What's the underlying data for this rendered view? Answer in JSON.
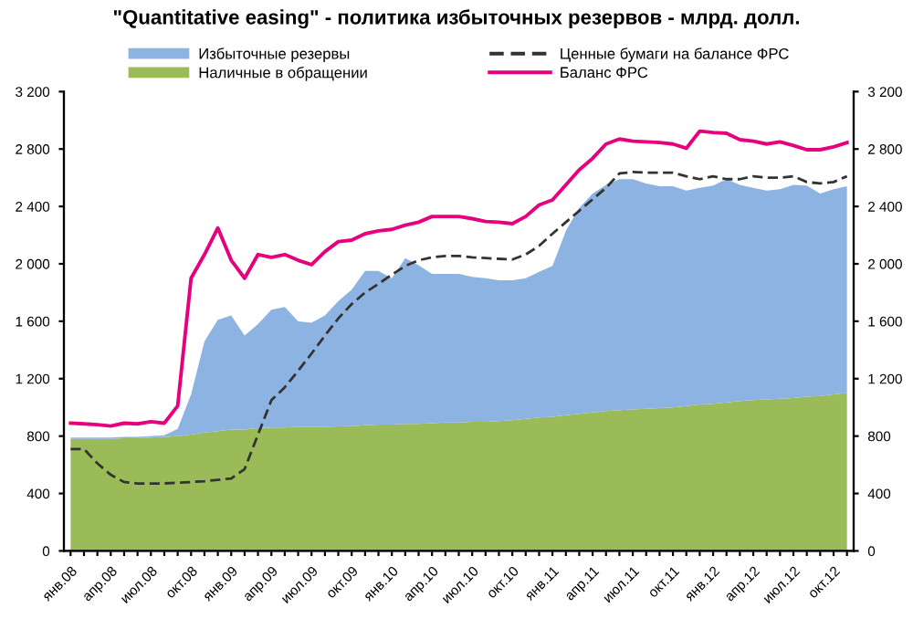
{
  "chart_data": {
    "type": "area",
    "title": "\"Quantitative easing\" - политика избыточных резервов - млрд. долл.",
    "categories": [
      "янв.08",
      null,
      null,
      "апр.08",
      null,
      null,
      "июл.08",
      null,
      null,
      "окт.08",
      null,
      null,
      "янв.09",
      null,
      null,
      "апр.09",
      null,
      null,
      "июл.09",
      null,
      null,
      "окт.09",
      null,
      null,
      "янв.10",
      null,
      null,
      "апр.10",
      null,
      null,
      "июл.10",
      null,
      null,
      "окт.10",
      null,
      null,
      "янв.11",
      null,
      null,
      "апр.11",
      null,
      null,
      "июл.11",
      null,
      null,
      "окт.11",
      null,
      null,
      "янв.12",
      null,
      null,
      "апр.12",
      null,
      null,
      "июл.12",
      null,
      null,
      "окт.12",
      null
    ],
    "stacked": true,
    "series": [
      {
        "name": "Наличные в обращении",
        "color": "#9bbb59",
        "values": [
          780,
          780,
          780,
          780,
          785,
          785,
          790,
          795,
          800,
          810,
          825,
          835,
          845,
          845,
          855,
          860,
          860,
          865,
          865,
          865,
          868,
          870,
          875,
          880,
          880,
          885,
          885,
          890,
          895,
          895,
          900,
          900,
          905,
          910,
          920,
          930,
          935,
          945,
          955,
          965,
          975,
          980,
          985,
          990,
          995,
          1000,
          1010,
          1020,
          1025,
          1035,
          1045,
          1050,
          1055,
          1060,
          1065,
          1075,
          1080,
          1090,
          1100
        ]
      },
      {
        "name": "Избыточные резервы",
        "color": "#8db3e2",
        "values": [
          10,
          10,
          10,
          10,
          10,
          10,
          10,
          10,
          50,
          280,
          635,
          775,
          795,
          655,
          725,
          820,
          840,
          735,
          725,
          775,
          872,
          950,
          1075,
          1070,
          1020,
          1155,
          1105,
          1040,
          1035,
          1035,
          1010,
          1000,
          980,
          975,
          980,
          1015,
          1050,
          1285,
          1435,
          1525,
          1575,
          1610,
          1605,
          1570,
          1545,
          1540,
          1500,
          1510,
          1520,
          1555,
          1505,
          1480,
          1455,
          1460,
          1485,
          1470,
          1410,
          1430,
          1440
        ]
      },
      {
        "name": "Ценные бумаги на балансе ФРС",
        "type": "line",
        "line_style": "dashed",
        "color": "#333333",
        "values": [
          710,
          710,
          610,
          530,
          480,
          470,
          470,
          470,
          475,
          480,
          485,
          495,
          505,
          570,
          810,
          1050,
          1140,
          1255,
          1375,
          1500,
          1620,
          1720,
          1800,
          1860,
          1925,
          1985,
          2025,
          2045,
          2055,
          2055,
          2045,
          2040,
          2035,
          2030,
          2065,
          2125,
          2210,
          2290,
          2370,
          2450,
          2530,
          2630,
          2640,
          2635,
          2635,
          2635,
          2610,
          2590,
          2610,
          2590,
          2590,
          2610,
          2600,
          2600,
          2610,
          2570,
          2560,
          2570,
          2610
        ]
      },
      {
        "name": "Баланс ФРС",
        "type": "line",
        "line_style": "solid",
        "color": "#e6007e",
        "values": [
          890,
          885,
          880,
          870,
          890,
          885,
          900,
          890,
          1010,
          1900,
          2065,
          2250,
          2025,
          1900,
          2065,
          2045,
          2065,
          2025,
          1995,
          2085,
          2155,
          2165,
          2210,
          2230,
          2240,
          2270,
          2290,
          2330,
          2330,
          2330,
          2315,
          2295,
          2290,
          2280,
          2330,
          2410,
          2445,
          2550,
          2655,
          2735,
          2835,
          2870,
          2855,
          2850,
          2845,
          2835,
          2805,
          2925,
          2915,
          2910,
          2865,
          2855,
          2835,
          2850,
          2825,
          2795,
          2795,
          2815,
          2845
        ]
      }
    ],
    "ylim": [
      0,
      3200
    ],
    "yticks": [
      {
        "value": 0,
        "label": "0"
      },
      {
        "value": 400,
        "label": "400"
      },
      {
        "value": 800,
        "label": "800"
      },
      {
        "value": 1200,
        "label": "1 200"
      },
      {
        "value": 1600,
        "label": "1 600"
      },
      {
        "value": 2000,
        "label": "2 000"
      },
      {
        "value": 2400,
        "label": "2 400"
      },
      {
        "value": 2800,
        "label": "2 800"
      },
      {
        "value": 3200,
        "label": "3 200"
      }
    ],
    "y2lim": [
      0,
      3200
    ],
    "y2ticks": [
      {
        "value": 0,
        "label": "0"
      },
      {
        "value": 400,
        "label": "400"
      },
      {
        "value": 800,
        "label": "800"
      },
      {
        "value": 1200,
        "label": "1 200"
      },
      {
        "value": 1600,
        "label": "1 600"
      },
      {
        "value": 2000,
        "label": "2 000"
      },
      {
        "value": 2400,
        "label": "2 400"
      },
      {
        "value": 2800,
        "label": "2 800"
      },
      {
        "value": 3200,
        "label": "3 200"
      }
    ],
    "legend": "top",
    "grid": false
  }
}
